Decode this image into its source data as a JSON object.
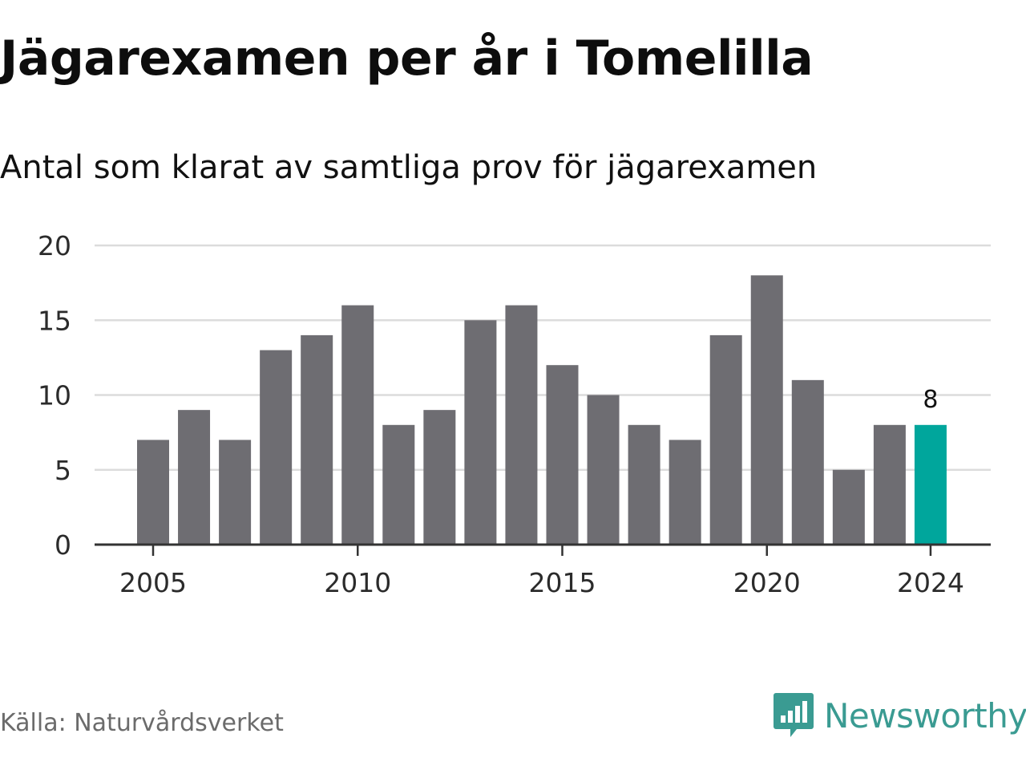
{
  "chart_data": {
    "type": "bar",
    "title": "Jägarexamen per år i Tomelilla",
    "subtitle": "Antal som klarat av samtliga prov för jägarexamen",
    "categories": [
      2005,
      2006,
      2007,
      2008,
      2009,
      2010,
      2011,
      2012,
      2013,
      2014,
      2015,
      2016,
      2017,
      2018,
      2019,
      2020,
      2021,
      2022,
      2023,
      2024
    ],
    "values": [
      7,
      9,
      7,
      13,
      14,
      16,
      8,
      9,
      15,
      16,
      12,
      10,
      8,
      7,
      14,
      18,
      11,
      5,
      8,
      8
    ],
    "ylim": [
      0,
      20
    ],
    "yticks": [
      "0",
      "5",
      "10",
      "15",
      "20"
    ],
    "xticks": [
      "2005",
      "2010",
      "2015",
      "2020",
      "2024"
    ],
    "grid": true,
    "highlight": {
      "category": 2024,
      "label": "8",
      "color": "#00a69c"
    },
    "bar_color": "#6e6d72",
    "source": "Källa: Naturvårdsverket",
    "xlabel": "",
    "ylabel": ""
  },
  "brand": {
    "name": "Newsworthy",
    "logo_icon": "chat-bar-chart-icon",
    "color": "#3a9b92"
  }
}
